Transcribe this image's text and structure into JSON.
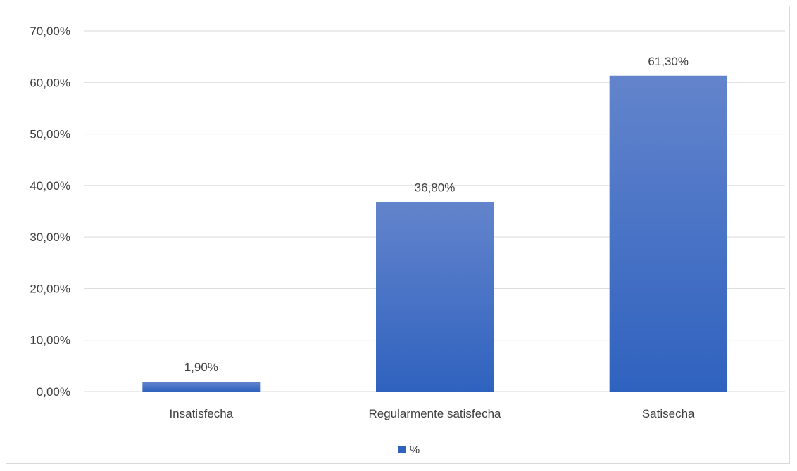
{
  "chart_data": {
    "type": "bar",
    "categories": [
      "Insatisfecha",
      "Regularmente satisfecha",
      "Satisecha"
    ],
    "series": [
      {
        "name": "%",
        "values": [
          1.9,
          36.8,
          61.3
        ]
      }
    ],
    "data_labels": [
      "1,90%",
      "36,80%",
      "61,30%"
    ],
    "y_ticks": [
      0,
      10,
      20,
      30,
      40,
      50,
      60,
      70
    ],
    "y_tick_labels": [
      "0,00%",
      "10,00%",
      "20,00%",
      "30,00%",
      "40,00%",
      "50,00%",
      "60,00%",
      "70,00%"
    ],
    "ylim": [
      0,
      70
    ],
    "grid": true,
    "legend_position": "bottom",
    "bar_color_top": "#6384cc",
    "bar_color_bottom": "#2f62bf"
  }
}
